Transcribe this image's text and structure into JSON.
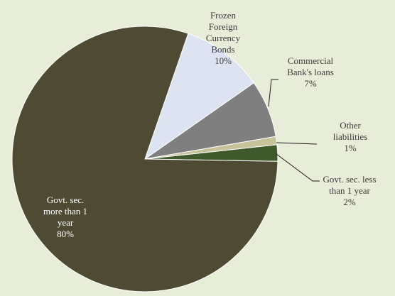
{
  "chart_data": {
    "type": "pie",
    "title": "",
    "legend": "none",
    "start_category": "Govt. sec. less than 1 year",
    "direction": "counterclockwise",
    "slices": [
      {
        "label": [
          "Govt. sec. less",
          "than 1 year"
        ],
        "value": 2,
        "value_label": "2%",
        "color": "#3f5a2a"
      },
      {
        "label": [
          "Other",
          "liabilities"
        ],
        "value": 1,
        "value_label": "1%",
        "color": "#c8c29a"
      },
      {
        "label": [
          "Commercial",
          "Bank's loans"
        ],
        "value": 7,
        "value_label": "7%",
        "color": "#7f7f7f"
      },
      {
        "label": [
          "Frozen",
          "Foreign",
          "Currency",
          "Bonds"
        ],
        "value": 10,
        "value_label": "10%",
        "color": "#dbe4f0"
      },
      {
        "label": [
          "Govt. sec.",
          "more than 1",
          "year"
        ],
        "value": 80,
        "value_label": "80%",
        "color": "#4e4a33"
      }
    ]
  }
}
